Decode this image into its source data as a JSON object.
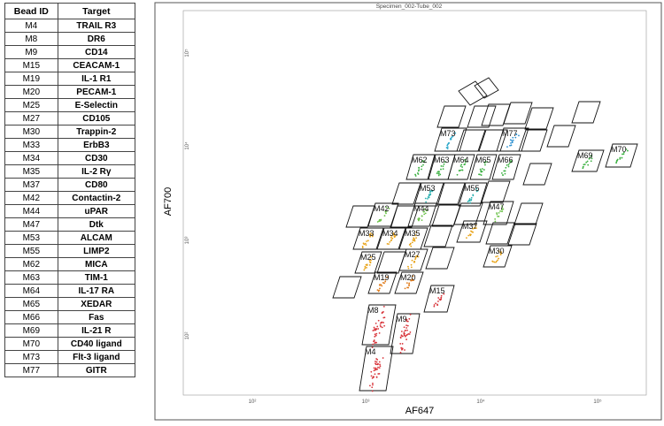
{
  "table": {
    "header": [
      "Bead ID",
      "Target"
    ],
    "rows": [
      [
        "M4",
        "TRAIL R3"
      ],
      [
        "M8",
        "DR6"
      ],
      [
        "M9",
        "CD14"
      ],
      [
        "M15",
        "CEACAM-1"
      ],
      [
        "M19",
        "IL-1 R1"
      ],
      [
        "M20",
        "PECAM-1"
      ],
      [
        "M25",
        "E-Selectin"
      ],
      [
        "M27",
        "CD105"
      ],
      [
        "M30",
        "Trappin-2"
      ],
      [
        "M33",
        "ErbB3"
      ],
      [
        "M34",
        "CD30"
      ],
      [
        "M35",
        "IL-2 Rγ"
      ],
      [
        "M37",
        "CD80"
      ],
      [
        "M42",
        "Contactin-2"
      ],
      [
        "M44",
        "uPAR"
      ],
      [
        "M47",
        "Dtk"
      ],
      [
        "M53",
        "ALCAM"
      ],
      [
        "M55",
        "LIMP2"
      ],
      [
        "M62",
        "MICA"
      ],
      [
        "M63",
        "TIM-1"
      ],
      [
        "M64",
        "IL-17 RA"
      ],
      [
        "M65",
        "XEDAR"
      ],
      [
        "M66",
        "Fas"
      ],
      [
        "M69",
        "IL-21 R"
      ],
      [
        "M70",
        "CD40 ligand"
      ],
      [
        "M73",
        "Flt-3 ligand"
      ],
      [
        "M77",
        "GITR"
      ]
    ]
  },
  "plot": {
    "title": "Specimen_002-Tube_002",
    "x_label": "AF647",
    "y_label": "AF700",
    "x_ticks": [
      "10²",
      "10³",
      "10⁴",
      "10⁵"
    ],
    "y_ticks": [
      "10⁵",
      "10⁴",
      "10³",
      "10²"
    ],
    "gates": [
      "M73",
      "M77",
      "M62",
      "M63",
      "M64",
      "M65",
      "M66",
      "M69",
      "M70",
      "M53",
      "M55",
      "M42",
      "M44",
      "M47",
      "M33",
      "M34",
      "M35",
      "M37",
      "M25",
      "M27",
      "M30",
      "M19",
      "M20",
      "M15",
      "M8",
      "M9",
      "M4"
    ]
  }
}
